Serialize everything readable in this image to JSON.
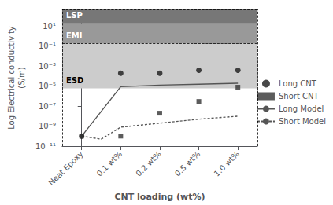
{
  "chart_data": {
    "type": "scatter",
    "xlabel": "CNT loading (wt%)",
    "ylabel": "Log Electrical conductivity\n(S/m)",
    "log": "y",
    "grid": false,
    "legend": "right",
    "xlim": [
      -0.5,
      4.5
    ],
    "xticks": [
      {
        "value": 0,
        "label": "Neat Epoxy"
      },
      {
        "value": 1,
        "label": "0.1 wt%"
      },
      {
        "value": 2,
        "label": "0.2 wt%"
      },
      {
        "value": 3,
        "label": "0.5 wt%"
      },
      {
        "value": 4,
        "label": "1.0 wt%"
      }
    ],
    "ylim": [
      1e-11,
      500
    ],
    "yticks": [
      {
        "value": 1e-11,
        "label": "10⁻¹¹"
      },
      {
        "value": 1e-09,
        "label": "10⁻⁹"
      },
      {
        "value": 1e-07,
        "label": "10⁻⁷"
      },
      {
        "value": 1e-05,
        "label": "10⁻⁵"
      },
      {
        "value": 0.001,
        "label": "10⁻³"
      },
      {
        "value": 0.1,
        "label": "10⁻¹"
      },
      {
        "value": 10,
        "label": "10¹"
      }
    ],
    "regions": [
      {
        "label": "ESD",
        "ymin": 6e-06,
        "ymax": 0.2,
        "color": "#cccccc"
      },
      {
        "label": "EMI",
        "ymin": 0.2,
        "ymax": 20,
        "color": "#999999"
      },
      {
        "label": "LSP",
        "ymin": 20,
        "ymax": 500,
        "color": "#777777"
      }
    ],
    "series": [
      {
        "name": "Long CNT",
        "type": "scatter",
        "marker": "circle",
        "color": "#1a1a1a",
        "x": [
          0,
          1,
          2,
          3,
          4
        ],
        "values": [
          1e-10,
          0.0002,
          0.0002,
          0.0004,
          0.0004
        ]
      },
      {
        "name": "Short CNT",
        "type": "scatter",
        "marker": "square",
        "color": "#333333",
        "x": [
          0,
          1,
          2,
          3,
          4
        ],
        "values": [
          1e-10,
          1e-10,
          2e-08,
          3e-07,
          8e-06
        ]
      },
      {
        "name": "Long Model",
        "type": "line",
        "line_style": "solid",
        "color": "#555555",
        "x": [
          0,
          1,
          2,
          3,
          4
        ],
        "values": [
          1e-10,
          9e-06,
          1.3e-05,
          1.6e-05,
          2e-05
        ]
      },
      {
        "name": "Short Model",
        "type": "line",
        "line_style": "dashed",
        "color": "#555555",
        "x": [
          0,
          0.5,
          1,
          2,
          3,
          4
        ],
        "values": [
          1e-10,
          5e-11,
          8e-10,
          2e-09,
          5e-09,
          1e-08
        ]
      }
    ]
  }
}
